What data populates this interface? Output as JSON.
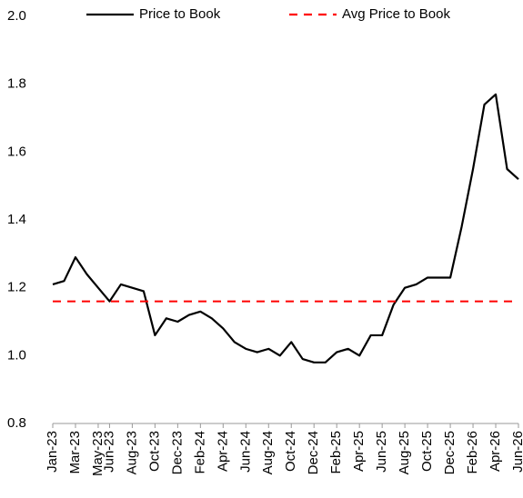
{
  "chart_data": {
    "type": "line",
    "categories": [
      "Jan-23",
      "Feb-23",
      "Mar-23",
      "Apr-23",
      "May-23",
      "Jun-23",
      "Jul-23",
      "Aug-23",
      "Sep-23",
      "Oct-23",
      "Nov-23",
      "Dec-23",
      "Jan-24",
      "Feb-24",
      "Mar-24",
      "Apr-24",
      "May-24",
      "Jun-24",
      "Jul-24",
      "Aug-24",
      "Sep-24",
      "Oct-24",
      "Nov-24",
      "Dec-24",
      "Jan-25",
      "Feb-25",
      "Mar-25",
      "Apr-25",
      "May-25",
      "Jun-25",
      "Jul-25",
      "Aug-25",
      "Sep-25",
      "Oct-25",
      "Nov-25",
      "Dec-25",
      "Jan-26",
      "Feb-26",
      "Mar-26",
      "Apr-26",
      "May-26",
      "Jun-26"
    ],
    "xticks": [
      "Jan-23",
      "Mar-23",
      "May-23",
      "Jun-23",
      "Aug-23",
      "Oct-23",
      "Dec-23",
      "Feb-24",
      "Apr-24",
      "Jun-24",
      "Aug-24",
      "Oct-24",
      "Dec-24",
      "Feb-25",
      "Apr-25",
      "Jun-25",
      "Aug-25",
      "Oct-25",
      "Dec-25",
      "Feb-26",
      "Apr-26",
      "Jun-26"
    ],
    "series": [
      {
        "name": "Price to Book",
        "color": "#000000",
        "dash": "solid",
        "values": [
          1.21,
          1.22,
          1.29,
          1.24,
          1.2,
          1.16,
          1.21,
          1.2,
          1.19,
          1.06,
          1.11,
          1.1,
          1.12,
          1.13,
          1.11,
          1.08,
          1.04,
          1.02,
          1.01,
          1.02,
          1.0,
          1.04,
          0.99,
          0.98,
          0.98,
          1.01,
          1.02,
          1.0,
          1.06,
          1.06,
          1.15,
          1.2,
          1.21,
          1.23,
          1.23,
          1.23,
          1.38,
          1.55,
          1.74,
          1.77,
          1.55,
          1.52
        ]
      },
      {
        "name": "Avg Price to Book",
        "color": "#ff0000",
        "dash": "dashed",
        "values": [
          1.16,
          1.16,
          1.16,
          1.16,
          1.16,
          1.16,
          1.16,
          1.16,
          1.16,
          1.16,
          1.16,
          1.16,
          1.16,
          1.16,
          1.16,
          1.16,
          1.16,
          1.16,
          1.16,
          1.16,
          1.16,
          1.16,
          1.16,
          1.16,
          1.16,
          1.16,
          1.16,
          1.16,
          1.16,
          1.16,
          1.16,
          1.16,
          1.16,
          1.16,
          1.16,
          1.16,
          1.16,
          1.16,
          1.16,
          1.16,
          1.16,
          1.16
        ]
      }
    ],
    "ylim": [
      0.8,
      2.0
    ],
    "yticks": [
      {
        "value": 0.8,
        "label": "0.8"
      },
      {
        "value": 1.0,
        "label": "1.0"
      },
      {
        "value": 1.2,
        "label": "1.2"
      },
      {
        "value": 1.4,
        "label": "1.4"
      },
      {
        "value": 1.6,
        "label": "1.6"
      },
      {
        "value": 1.8,
        "label": "1.8"
      },
      {
        "value": 2.0,
        "label": "2.0"
      }
    ],
    "grid": false,
    "legend": "top"
  }
}
